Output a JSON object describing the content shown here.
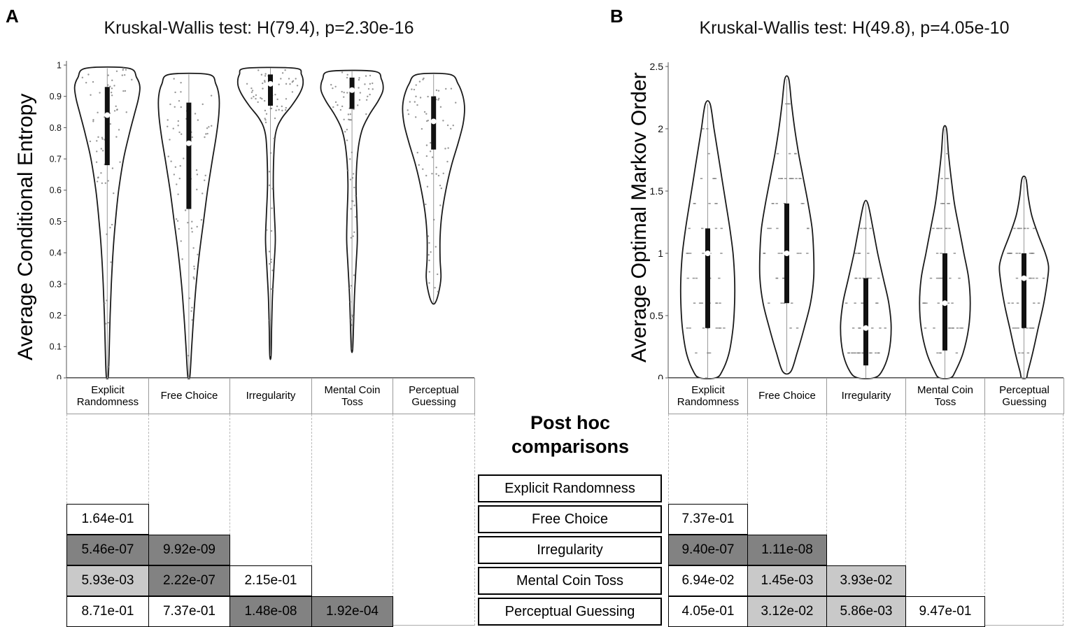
{
  "panels": [
    {
      "letter": "A",
      "kruskal_wallis": {
        "H": "79.4",
        "p": "2.30e-16"
      }
    },
    {
      "letter": "B",
      "kruskal_wallis": {
        "H": "49.8",
        "p": "4.05e-10"
      }
    }
  ],
  "chart_data": [
    {
      "type": "violin",
      "title": "Kruskal-Wallis test: H(79.4), p=2.30e-16",
      "ylabel": "Average Conditional Entropy",
      "xlabel": "",
      "ylim": [
        0,
        1
      ],
      "yticks": [
        0,
        0.1,
        0.2,
        0.3,
        0.4,
        0.5,
        0.6,
        0.7,
        0.8,
        0.9,
        1
      ],
      "ytick_labels": [
        "0",
        "0.1",
        "0.2",
        "0.3",
        "0.4",
        "0.5",
        "0.6",
        "0.7",
        "0.8",
        "0.9",
        "1"
      ],
      "categories": [
        "Explicit Randomness",
        "Free Choice",
        "Irregularity",
        "Mental Coin Toss",
        "Perceptual Guessing"
      ],
      "jitter": {
        "count": 70,
        "step": null,
        "marker": "dot"
      },
      "violins": [
        {
          "category": "Explicit Randomness",
          "median": 0.84,
          "q1": 0.68,
          "q3": 0.93,
          "profile": [
            [
              0.99,
              0.26
            ],
            [
              0.96,
              0.36
            ],
            [
              0.93,
              0.4
            ],
            [
              0.89,
              0.38
            ],
            [
              0.84,
              0.33
            ],
            [
              0.78,
              0.27
            ],
            [
              0.7,
              0.2
            ],
            [
              0.6,
              0.14
            ],
            [
              0.5,
              0.1
            ],
            [
              0.4,
              0.07
            ],
            [
              0.3,
              0.05
            ],
            [
              0.2,
              0.035
            ],
            [
              0.1,
              0.025
            ],
            [
              0.005,
              0.012
            ]
          ]
        },
        {
          "category": "Free Choice",
          "median": 0.75,
          "q1": 0.54,
          "q3": 0.88,
          "profile": [
            [
              0.97,
              0.24
            ],
            [
              0.94,
              0.33
            ],
            [
              0.9,
              0.37
            ],
            [
              0.85,
              0.37
            ],
            [
              0.78,
              0.34
            ],
            [
              0.7,
              0.29
            ],
            [
              0.6,
              0.23
            ],
            [
              0.5,
              0.18
            ],
            [
              0.4,
              0.13
            ],
            [
              0.3,
              0.09
            ],
            [
              0.2,
              0.06
            ],
            [
              0.1,
              0.035
            ],
            [
              0.005,
              0.013
            ]
          ]
        },
        {
          "category": "Irregularity",
          "median": 0.94,
          "q1": 0.87,
          "q3": 0.97,
          "profile": [
            [
              0.99,
              0.3
            ],
            [
              0.97,
              0.38
            ],
            [
              0.94,
              0.4
            ],
            [
              0.91,
              0.36
            ],
            [
              0.87,
              0.26
            ],
            [
              0.83,
              0.14
            ],
            [
              0.79,
              0.07
            ],
            [
              0.73,
              0.045
            ],
            [
              0.62,
              0.035
            ],
            [
              0.52,
              0.05
            ],
            [
              0.44,
              0.06
            ],
            [
              0.36,
              0.045
            ],
            [
              0.26,
              0.025
            ],
            [
              0.16,
              0.015
            ],
            [
              0.07,
              0.008
            ]
          ]
        },
        {
          "category": "Mental Coin Toss",
          "median": 0.92,
          "q1": 0.86,
          "q3": 0.96,
          "profile": [
            [
              0.98,
              0.27
            ],
            [
              0.955,
              0.36
            ],
            [
              0.92,
              0.38
            ],
            [
              0.885,
              0.32
            ],
            [
              0.84,
              0.21
            ],
            [
              0.79,
              0.12
            ],
            [
              0.72,
              0.07
            ],
            [
              0.62,
              0.05
            ],
            [
              0.52,
              0.06
            ],
            [
              0.44,
              0.065
            ],
            [
              0.36,
              0.05
            ],
            [
              0.26,
              0.03
            ],
            [
              0.16,
              0.018
            ],
            [
              0.09,
              0.008
            ]
          ]
        },
        {
          "category": "Perceptual Guessing",
          "median": 0.82,
          "q1": 0.73,
          "q3": 0.9,
          "profile": [
            [
              0.97,
              0.2
            ],
            [
              0.94,
              0.3
            ],
            [
              0.9,
              0.36
            ],
            [
              0.86,
              0.38
            ],
            [
              0.81,
              0.36
            ],
            [
              0.75,
              0.3
            ],
            [
              0.68,
              0.22
            ],
            [
              0.6,
              0.15
            ],
            [
              0.52,
              0.1
            ],
            [
              0.45,
              0.08
            ],
            [
              0.38,
              0.08
            ],
            [
              0.32,
              0.09
            ],
            [
              0.27,
              0.06
            ],
            [
              0.24,
              0.02
            ]
          ]
        }
      ]
    },
    {
      "type": "violin",
      "title": "Kruskal-Wallis test: H(49.8), p=4.05e-10",
      "ylabel": "Average Optimal Markov Order",
      "xlabel": "",
      "ylim": [
        0,
        2.5
      ],
      "yticks": [
        0,
        0.5,
        1,
        1.5,
        2,
        2.5
      ],
      "ytick_labels": [
        "0",
        "0.5",
        "1",
        "1.5",
        "2",
        "2.5"
      ],
      "categories": [
        "Explicit Randomness",
        "Free Choice",
        "Irregularity",
        "Mental Coin Toss",
        "Perceptual Guessing"
      ],
      "jitter": {
        "count": 48,
        "step": 0.2,
        "marker": "dash"
      },
      "violins": [
        {
          "category": "Explicit Randomness",
          "median": 1.0,
          "q1": 0.4,
          "q3": 1.2,
          "profile": [
            [
              2.2,
              0.03
            ],
            [
              2.0,
              0.08
            ],
            [
              1.8,
              0.13
            ],
            [
              1.6,
              0.18
            ],
            [
              1.4,
              0.23
            ],
            [
              1.2,
              0.28
            ],
            [
              1.0,
              0.32
            ],
            [
              0.8,
              0.34
            ],
            [
              0.6,
              0.34
            ],
            [
              0.4,
              0.32
            ],
            [
              0.2,
              0.27
            ],
            [
              0.05,
              0.18
            ],
            [
              0.0,
              0.1
            ]
          ]
        },
        {
          "category": "Free Choice",
          "median": 1.0,
          "q1": 0.6,
          "q3": 1.4,
          "profile": [
            [
              2.4,
              0.025
            ],
            [
              2.2,
              0.06
            ],
            [
              2.0,
              0.1
            ],
            [
              1.8,
              0.15
            ],
            [
              1.6,
              0.21
            ],
            [
              1.4,
              0.27
            ],
            [
              1.2,
              0.32
            ],
            [
              1.0,
              0.34
            ],
            [
              0.8,
              0.34
            ],
            [
              0.6,
              0.3
            ],
            [
              0.4,
              0.22
            ],
            [
              0.2,
              0.13
            ],
            [
              0.05,
              0.05
            ]
          ]
        },
        {
          "category": "Irregularity",
          "median": 0.4,
          "q1": 0.1,
          "q3": 0.8,
          "profile": [
            [
              1.4,
              0.025
            ],
            [
              1.2,
              0.09
            ],
            [
              1.0,
              0.15
            ],
            [
              0.8,
              0.22
            ],
            [
              0.6,
              0.29
            ],
            [
              0.4,
              0.32
            ],
            [
              0.2,
              0.29
            ],
            [
              0.05,
              0.2
            ],
            [
              0.0,
              0.1
            ]
          ]
        },
        {
          "category": "Mental Coin Toss",
          "median": 0.6,
          "q1": 0.22,
          "q3": 1.0,
          "profile": [
            [
              2.0,
              0.02
            ],
            [
              1.8,
              0.045
            ],
            [
              1.6,
              0.08
            ],
            [
              1.4,
              0.12
            ],
            [
              1.2,
              0.18
            ],
            [
              1.0,
              0.24
            ],
            [
              0.8,
              0.3
            ],
            [
              0.6,
              0.32
            ],
            [
              0.4,
              0.3
            ],
            [
              0.2,
              0.23
            ],
            [
              0.05,
              0.13
            ],
            [
              0.0,
              0.07
            ]
          ]
        },
        {
          "category": "Perceptual Guessing",
          "median": 0.8,
          "q1": 0.4,
          "q3": 1.0,
          "profile": [
            [
              1.6,
              0.025
            ],
            [
              1.45,
              0.055
            ],
            [
              1.3,
              0.1
            ],
            [
              1.15,
              0.18
            ],
            [
              1.0,
              0.27
            ],
            [
              0.9,
              0.31
            ],
            [
              0.8,
              0.3
            ],
            [
              0.6,
              0.25
            ],
            [
              0.4,
              0.18
            ],
            [
              0.2,
              0.11
            ],
            [
              0.05,
              0.05
            ],
            [
              0.0,
              0.03
            ]
          ]
        }
      ]
    }
  ],
  "posthoc": {
    "heading": "Post hoc\ncomparisons",
    "row_labels": [
      "Explicit Randomness",
      "Free Choice",
      "Irregularity",
      "Mental Coin Toss",
      "Perceptual Guessing"
    ],
    "shade_colors": {
      "dark": "#828282",
      "light": "#c9c9c9",
      "white": "#ffffff"
    },
    "left": {
      "panel": "A",
      "rows": [
        {
          "label": "Free Choice",
          "cells": [
            {
              "value": "1.64e-01",
              "shade": "white"
            }
          ]
        },
        {
          "label": "Irregularity",
          "cells": [
            {
              "value": "5.46e-07",
              "shade": "dark"
            },
            {
              "value": "9.92e-09",
              "shade": "dark"
            }
          ]
        },
        {
          "label": "Mental Coin Toss",
          "cells": [
            {
              "value": "5.93e-03",
              "shade": "light"
            },
            {
              "value": "2.22e-07",
              "shade": "dark"
            },
            {
              "value": "2.15e-01",
              "shade": "white"
            }
          ]
        },
        {
          "label": "Perceptual Guessing",
          "cells": [
            {
              "value": "8.71e-01",
              "shade": "white"
            },
            {
              "value": "7.37e-01",
              "shade": "white"
            },
            {
              "value": "1.48e-08",
              "shade": "dark"
            },
            {
              "value": "1.92e-04",
              "shade": "dark"
            }
          ]
        }
      ]
    },
    "right": {
      "panel": "B",
      "rows": [
        {
          "label": "Free Choice",
          "cells": [
            {
              "value": "7.37e-01",
              "shade": "white"
            }
          ]
        },
        {
          "label": "Irregularity",
          "cells": [
            {
              "value": "9.40e-07",
              "shade": "dark"
            },
            {
              "value": "1.11e-08",
              "shade": "dark"
            }
          ]
        },
        {
          "label": "Mental Coin Toss",
          "cells": [
            {
              "value": "6.94e-02",
              "shade": "white"
            },
            {
              "value": "1.45e-03",
              "shade": "light"
            },
            {
              "value": "3.93e-02",
              "shade": "light"
            }
          ]
        },
        {
          "label": "Perceptual Guessing",
          "cells": [
            {
              "value": "4.05e-01",
              "shade": "white"
            },
            {
              "value": "3.12e-02",
              "shade": "light"
            },
            {
              "value": "5.86e-03",
              "shade": "light"
            },
            {
              "value": "9.47e-01",
              "shade": "white"
            }
          ]
        }
      ]
    }
  }
}
